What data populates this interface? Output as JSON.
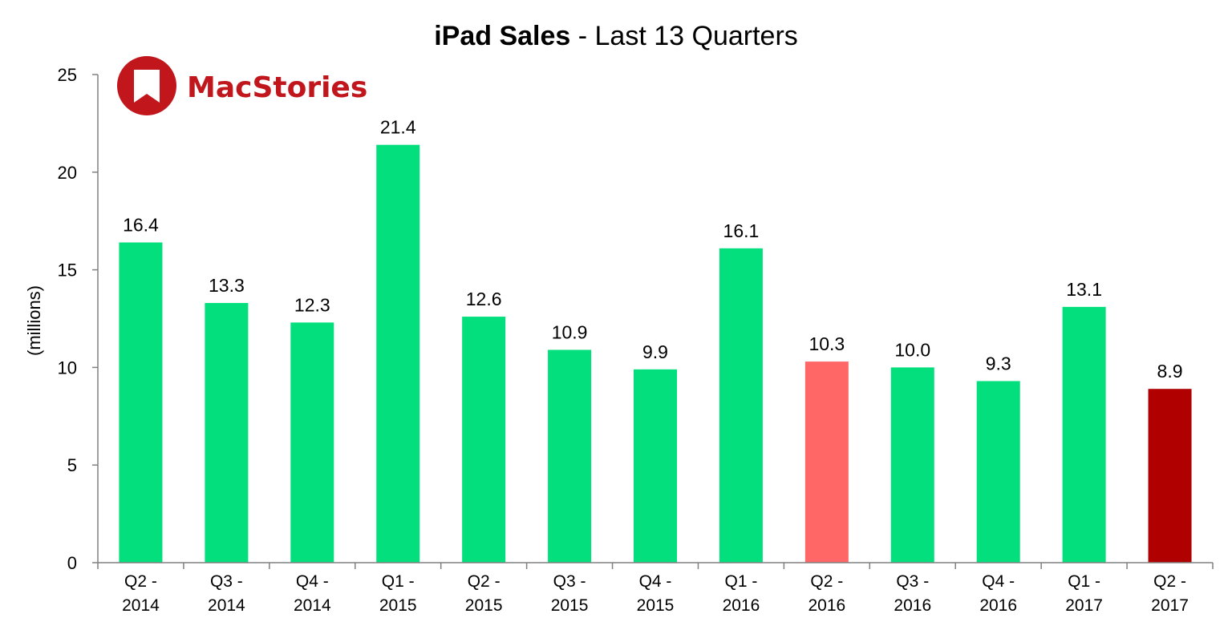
{
  "title": {
    "bold": "iPad Sales",
    "rest": " - Last 13 Quarters"
  },
  "logo": {
    "text": "MacStories",
    "color": "#c0161c",
    "icon": "bookmark-icon"
  },
  "colors": {
    "default_bar": "#03df7c",
    "highlight_prev": "#ff6666",
    "highlight_current": "#b00000",
    "axis": "#808080"
  },
  "chart_data": {
    "type": "bar",
    "title": "iPad Sales - Last 13 Quarters",
    "ylabel": "(millions)",
    "xlabel": "",
    "ylim": [
      0,
      25
    ],
    "yticks": [
      0,
      5,
      10,
      15,
      20,
      25
    ],
    "grid": false,
    "legend": "none",
    "categories": [
      [
        "Q2 -",
        "2014"
      ],
      [
        "Q3 -",
        "2014"
      ],
      [
        "Q4 -",
        "2014"
      ],
      [
        "Q1 -",
        "2015"
      ],
      [
        "Q2 -",
        "2015"
      ],
      [
        "Q3 -",
        "2015"
      ],
      [
        "Q4 -",
        "2015"
      ],
      [
        "Q1 -",
        "2016"
      ],
      [
        "Q2 -",
        "2016"
      ],
      [
        "Q3 -",
        "2016"
      ],
      [
        "Q4 -",
        "2016"
      ],
      [
        "Q1 -",
        "2017"
      ],
      [
        "Q2 -",
        "2017"
      ]
    ],
    "values": [
      16.4,
      13.3,
      12.3,
      21.4,
      12.6,
      10.9,
      9.9,
      16.1,
      10.3,
      10.0,
      9.3,
      13.1,
      8.9
    ],
    "value_labels": [
      "16.4",
      "13.3",
      "12.3",
      "21.4",
      "12.6",
      "10.9",
      "9.9",
      "16.1",
      "10.3",
      "10.0",
      "9.3",
      "13.1",
      "8.9"
    ],
    "bar_colors": [
      "default_bar",
      "default_bar",
      "default_bar",
      "default_bar",
      "default_bar",
      "default_bar",
      "default_bar",
      "default_bar",
      "highlight_prev",
      "default_bar",
      "default_bar",
      "default_bar",
      "highlight_current"
    ]
  }
}
